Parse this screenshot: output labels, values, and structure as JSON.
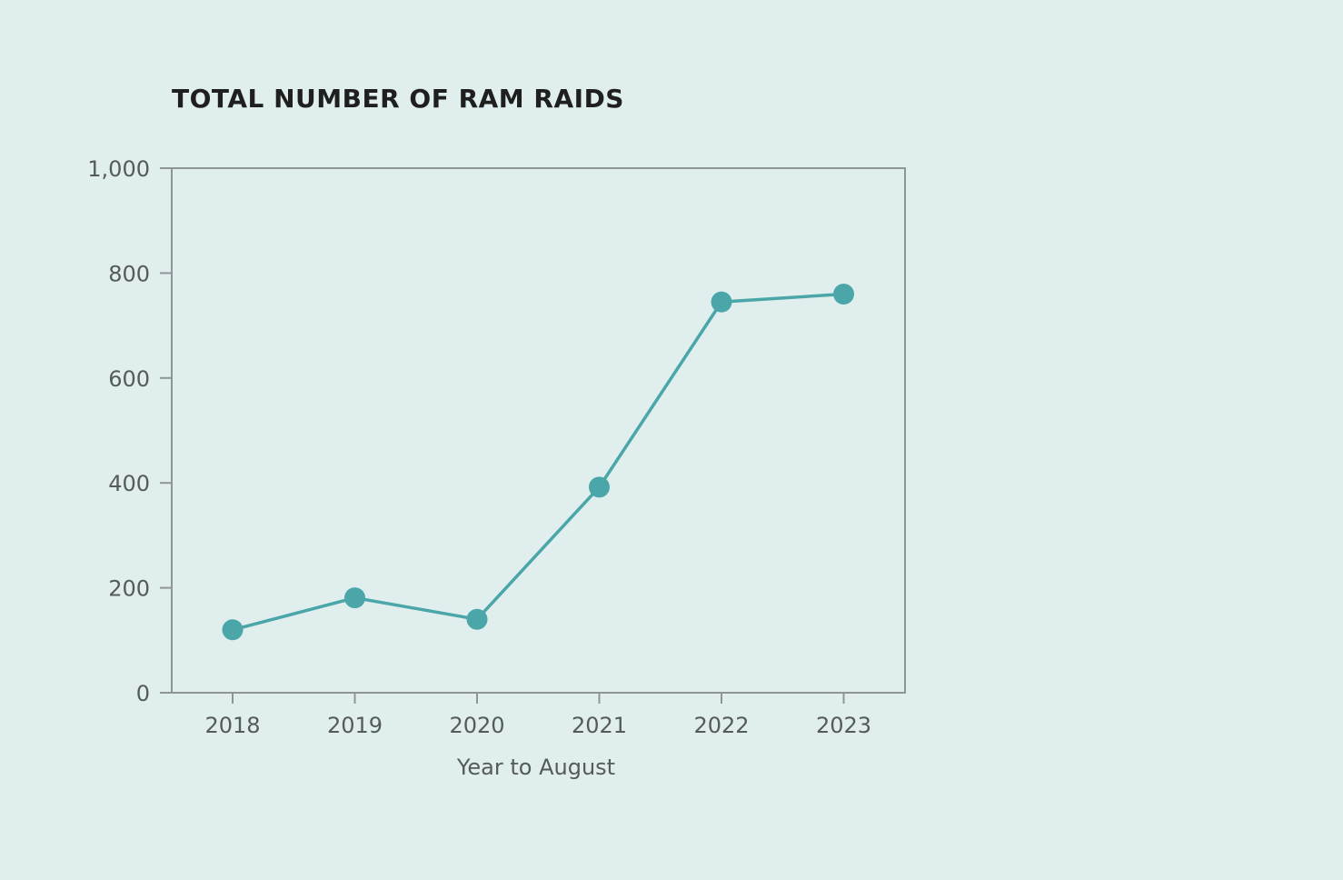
{
  "chart_data": {
    "type": "line",
    "title": "TOTAL NUMBER OF RAM RAIDS",
    "xlabel": "Year to August",
    "ylabel": "",
    "categories": [
      "2018",
      "2019",
      "2020",
      "2021",
      "2022",
      "2023"
    ],
    "series": [
      {
        "values": [
          120,
          181,
          140,
          392,
          745,
          760
        ]
      }
    ],
    "ylim": [
      0,
      1000
    ],
    "yticks": [
      0,
      200,
      400,
      600,
      800,
      1000
    ],
    "ytick_labels": [
      "0",
      "200",
      "400",
      "600",
      "800",
      "1,000"
    ],
    "grid": false,
    "legend": "none",
    "colors": {
      "background": "#e1eeee",
      "series": "#4aa6a8",
      "axis": "#8e9597",
      "text": "#555a5c",
      "title": "#1f1f1f"
    }
  }
}
